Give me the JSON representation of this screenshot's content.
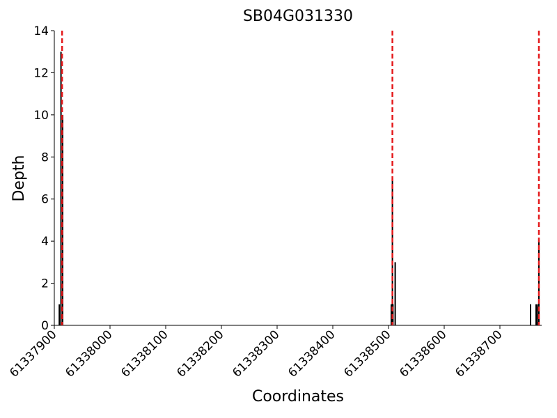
{
  "chart_data": {
    "type": "bar",
    "title": "SB04G031330",
    "xlabel": "Coordinates",
    "ylabel": "Depth",
    "x": [
      61337909,
      61337912,
      61337915,
      61338505,
      61338506,
      61338507,
      61338508,
      61338512,
      61338755,
      61338765,
      61338767,
      61338770
    ],
    "values": [
      1,
      13,
      10,
      1,
      1,
      7,
      1,
      3,
      1,
      1,
      1,
      4
    ],
    "color": "#000000",
    "vlines": [
      61337914,
      61338507,
      61338770
    ],
    "vline_color": "#e41a1c",
    "xlim": [
      61337900,
      61338775
    ],
    "xticks": [
      61337900,
      61338000,
      61338100,
      61338200,
      61338300,
      61338400,
      61338500,
      61338600,
      61338700
    ],
    "ylim": [
      0,
      14
    ],
    "yticks": [
      0,
      2,
      4,
      6,
      8,
      10,
      12,
      14
    ]
  }
}
